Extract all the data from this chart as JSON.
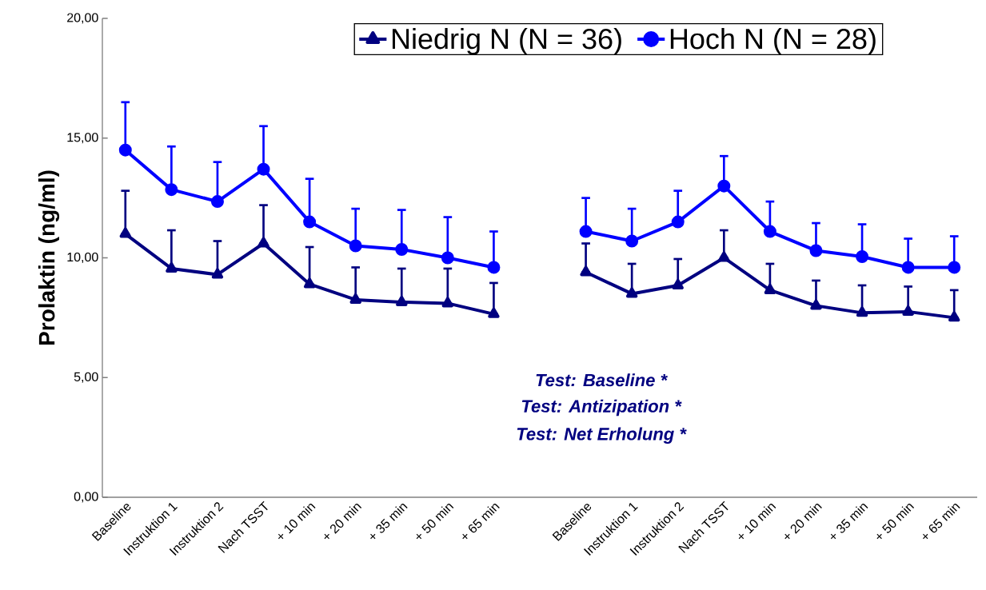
{
  "chart_data": {
    "type": "line",
    "ylabel": "Prolaktin (ng/ml)",
    "categories": [
      "Baseline",
      "Instruktion 1",
      "Instruktion 2",
      "Nach TSST",
      "+ 10 min",
      "+ 20 min",
      "+ 35 min",
      "+ 50 min",
      "+ 65 min",
      null,
      "Baseline",
      "Instruktion 1",
      "Instruktion 2",
      "Nach TSST",
      "+ 10 min",
      "+ 20 min",
      "+ 35 min",
      "+ 50 min",
      "+ 65 min"
    ],
    "series": [
      {
        "name": "Niedrig N (N = 36)",
        "color": "#000080",
        "marker": "triangle",
        "values": [
          11.0,
          9.55,
          9.3,
          10.6,
          8.9,
          8.25,
          8.15,
          8.1,
          7.65,
          null,
          9.4,
          8.5,
          8.85,
          10.0,
          8.65,
          8.0,
          7.7,
          7.75,
          7.5
        ],
        "errors": [
          [
            11.0,
            12.8
          ],
          [
            9.55,
            11.15
          ],
          [
            9.3,
            10.7
          ],
          [
            10.6,
            12.2
          ],
          [
            8.9,
            10.45
          ],
          [
            8.25,
            9.6
          ],
          [
            8.15,
            9.55
          ],
          [
            8.1,
            9.55
          ],
          [
            7.65,
            8.95
          ],
          null,
          [
            9.4,
            10.6
          ],
          [
            8.5,
            9.75
          ],
          [
            8.85,
            9.95
          ],
          [
            10.0,
            11.15
          ],
          [
            8.65,
            9.75
          ],
          [
            8.0,
            9.05
          ],
          [
            7.7,
            8.85
          ],
          [
            7.75,
            8.8
          ],
          [
            7.5,
            8.65
          ]
        ]
      },
      {
        "name": "Hoch N (N = 28)",
        "color": "#0000ff",
        "marker": "circle",
        "values": [
          14.5,
          12.85,
          12.35,
          13.7,
          11.5,
          10.5,
          10.35,
          10.0,
          9.6,
          null,
          11.1,
          10.7,
          11.5,
          13.0,
          11.1,
          10.3,
          10.05,
          9.6,
          9.6
        ],
        "errors": [
          [
            14.5,
            16.5
          ],
          [
            12.85,
            14.65
          ],
          [
            12.35,
            14.0
          ],
          [
            13.7,
            15.5
          ],
          [
            11.5,
            13.3
          ],
          [
            10.5,
            12.05
          ],
          [
            10.35,
            12.0
          ],
          [
            10.0,
            11.7
          ],
          [
            9.6,
            11.1
          ],
          null,
          [
            11.1,
            12.5
          ],
          [
            10.7,
            12.05
          ],
          [
            11.5,
            12.8
          ],
          [
            13.0,
            14.25
          ],
          [
            11.1,
            12.35
          ],
          [
            10.3,
            11.45
          ],
          [
            10.05,
            11.4
          ],
          [
            9.6,
            10.8
          ],
          [
            9.6,
            10.9
          ]
        ]
      }
    ],
    "ylim": [
      0,
      20
    ],
    "yticks": [
      {
        "value": 0,
        "label": "0,00"
      },
      {
        "value": 5,
        "label": "5,00"
      },
      {
        "value": 10,
        "label": "10,00"
      },
      {
        "value": 15,
        "label": "15,00"
      },
      {
        "value": 20,
        "label": "20,00"
      }
    ],
    "annotations": [
      "Test: Baseline *",
      "Test: Antizipation *",
      "Test: Net Erholung *"
    ],
    "legend": "top",
    "grid": false,
    "line_style": "solid"
  }
}
